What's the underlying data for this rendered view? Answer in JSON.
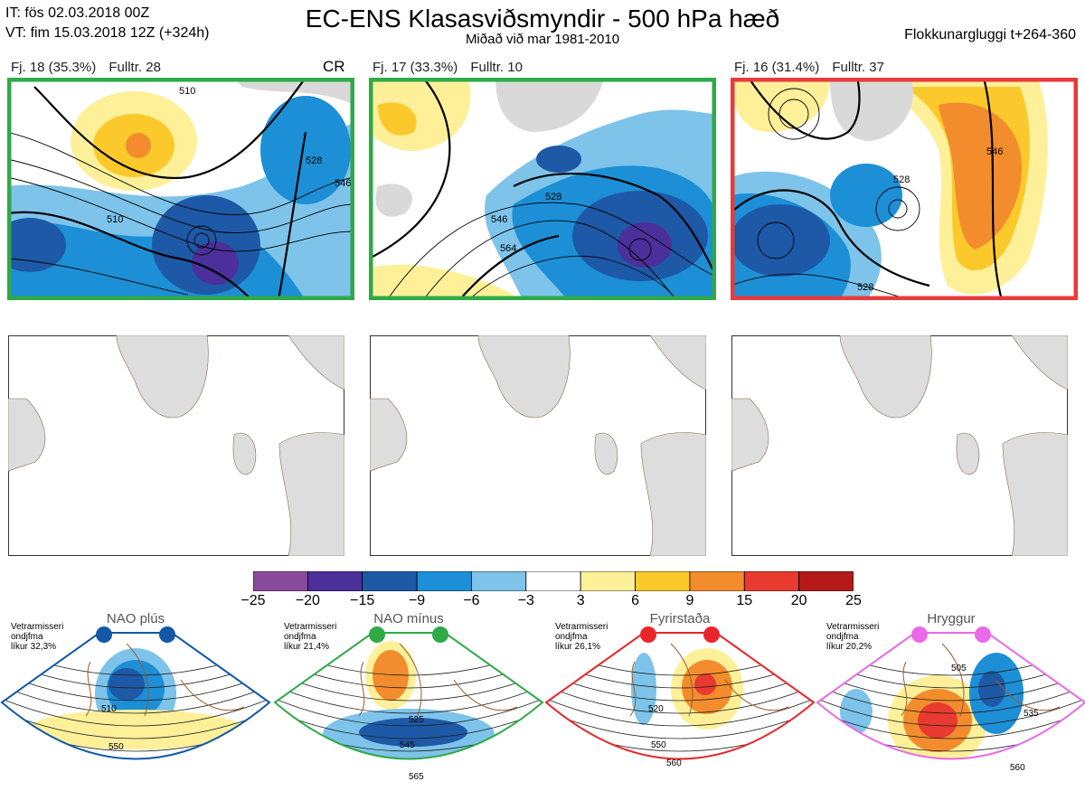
{
  "header": {
    "it_line": "IT: fös 02.03.2018 00Z",
    "vt_line": "VT: fim 15.03.2018 12Z  (+324h)",
    "title": "EC-ENS Klasasviðsmyndir - 500 hPa hæð",
    "subtitle": "Miðað við mar 1981-2010",
    "window": "Flokkunargluggi t+264-360"
  },
  "panels": [
    {
      "label": "Fj. 18 (35.3%)",
      "fulltr": "Fulltr. 28",
      "tag": "CR",
      "border": "#2eaa46",
      "contours": [
        "510",
        "510",
        "546",
        "528",
        "546",
        "528"
      ]
    },
    {
      "label": "Fj. 17 (33.3%)",
      "fulltr": "Fulltr. 10",
      "tag": "",
      "border": "#2eaa46",
      "contours": [
        "528",
        "546",
        "564",
        "528",
        "546",
        "528"
      ]
    },
    {
      "label": "Fj. 16 (31.4%)",
      "fulltr": "Fulltr. 37",
      "tag": "",
      "border": "#e83a3a",
      "contours": [
        "528",
        "546",
        "528",
        "546",
        "546",
        "546"
      ]
    }
  ],
  "colorbar": {
    "ticks": [
      "−25",
      "−20",
      "−15",
      "−9",
      "−6",
      "−3",
      "3",
      "6",
      "9",
      "15",
      "20",
      "25"
    ],
    "colors": [
      "#8a4a9c",
      "#4b2f9a",
      "#1d59a6",
      "#1c8fd6",
      "#7dc3ea",
      "#ffffff",
      "#fdf099",
      "#fcc92c",
      "#f28c2c",
      "#e83a2e",
      "#b41a1a"
    ]
  },
  "regimes": [
    {
      "title": "NAO plús",
      "note1": "Vetrarmisseri",
      "note2": "ondjfma",
      "note3": "líkur 32,3%",
      "color": "#1258a6",
      "labels": [
        "510",
        "550"
      ]
    },
    {
      "title": "NAO mínus",
      "note1": "Vetrarmisseri",
      "note2": "ondjfma",
      "note3": "líkur 21,4%",
      "color": "#2eaa46",
      "labels": [
        "525",
        "545",
        "565"
      ]
    },
    {
      "title": "Fyrirstaða",
      "note1": "Vetrarmisseri",
      "note2": "ondjfma",
      "note3": "líkur 26,1%",
      "color": "#e8262a",
      "labels": [
        "520",
        "550",
        "560"
      ]
    },
    {
      "title": "Hryggur",
      "note1": "Vetrarmisseri",
      "note2": "ondjfma",
      "note3": "líkur 20,2%",
      "color": "#e86ae8",
      "labels": [
        "505",
        "535",
        "560"
      ]
    }
  ],
  "chart_data": {
    "type": "heatmap",
    "title": "EC-ENS Klasasviðsmyndir - 500 hPa hæð",
    "subtitle": "Miðað við mar 1981-2010",
    "colorbar_ticks": [
      -25,
      -20,
      -15,
      -9,
      -6,
      -3,
      3,
      6,
      9,
      15,
      20,
      25
    ],
    "clusters": [
      {
        "name": "Fj. 18",
        "percent": 35.3,
        "representative": 28
      },
      {
        "name": "Fj. 17",
        "percent": 33.3,
        "representative": 10
      },
      {
        "name": "Fj. 16",
        "percent": 31.4,
        "representative": 37
      }
    ],
    "regimes": [
      {
        "name": "NAO plús",
        "probability": 32.3
      },
      {
        "name": "NAO mínus",
        "probability": 21.4
      },
      {
        "name": "Fyrirstaða",
        "probability": 26.1
      },
      {
        "name": "Hryggur",
        "probability": 20.2
      }
    ]
  }
}
